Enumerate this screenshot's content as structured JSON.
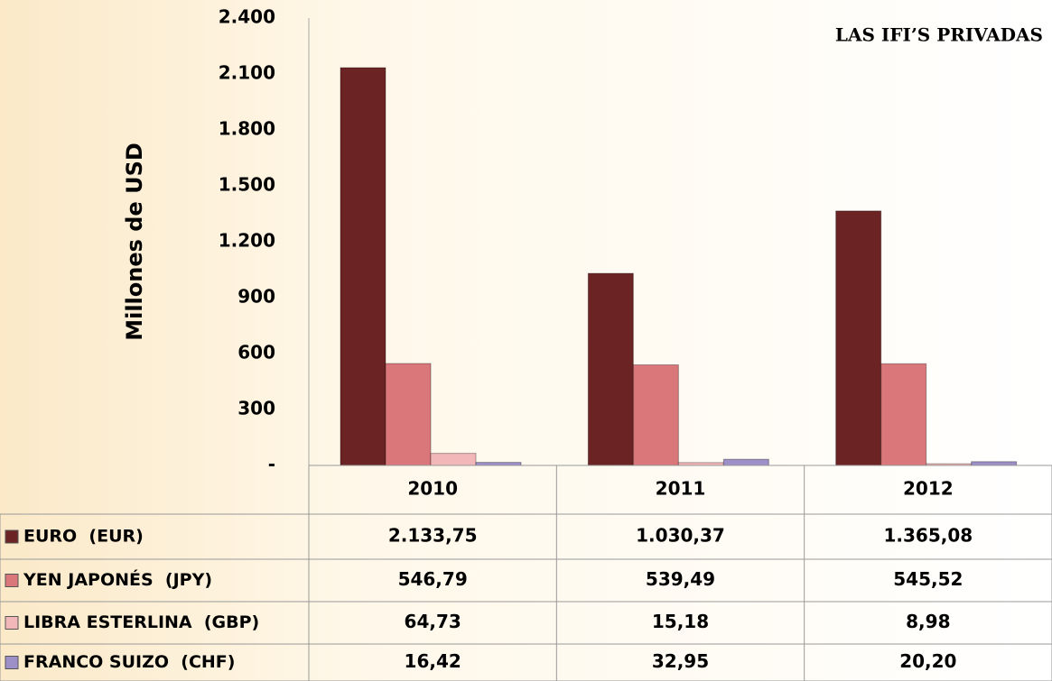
{
  "chart_data": {
    "type": "bar",
    "title": "LAS IFI’S PRIVADAS",
    "y_label": "Millones de USD",
    "categories": [
      "2010",
      "2011",
      "2012"
    ],
    "series": [
      {
        "name": "EURO  (EUR)",
        "color": "#6b2323",
        "values": [
          2133.75,
          1030.37,
          1365.08
        ],
        "value_labels": [
          "2.133,75",
          "1.030,37",
          "1.365,08"
        ]
      },
      {
        "name": "YEN JAPONÉS  (JPY)",
        "color": "#d9777a",
        "values": [
          546.79,
          539.49,
          545.52
        ],
        "value_labels": [
          "546,79",
          "539,49",
          "545,52"
        ]
      },
      {
        "name": "LIBRA ESTERLINA  (GBP)",
        "color": "#f2b7b9",
        "values": [
          64.73,
          15.18,
          8.98
        ],
        "value_labels": [
          "64,73",
          "15,18",
          "8,98"
        ]
      },
      {
        "name": "FRANCO SUIZO  (CHF)",
        "color": "#9d90c9",
        "values": [
          16.42,
          32.95,
          20.2
        ],
        "value_labels": [
          "16,42",
          "32,95",
          "20,20"
        ]
      }
    ],
    "ylim": [
      0,
      2400
    ],
    "yticks": [
      {
        "value": 0,
        "label": "-"
      },
      300,
      600,
      900,
      {
        "value": 1200,
        "label": "1.200"
      },
      {
        "value": 1500,
        "label": "1.500"
      },
      {
        "value": 1800,
        "label": "1.800"
      },
      {
        "value": 2100,
        "label": "2.100"
      },
      {
        "value": 2400,
        "label": "2.400"
      }
    ],
    "grid": false
  }
}
